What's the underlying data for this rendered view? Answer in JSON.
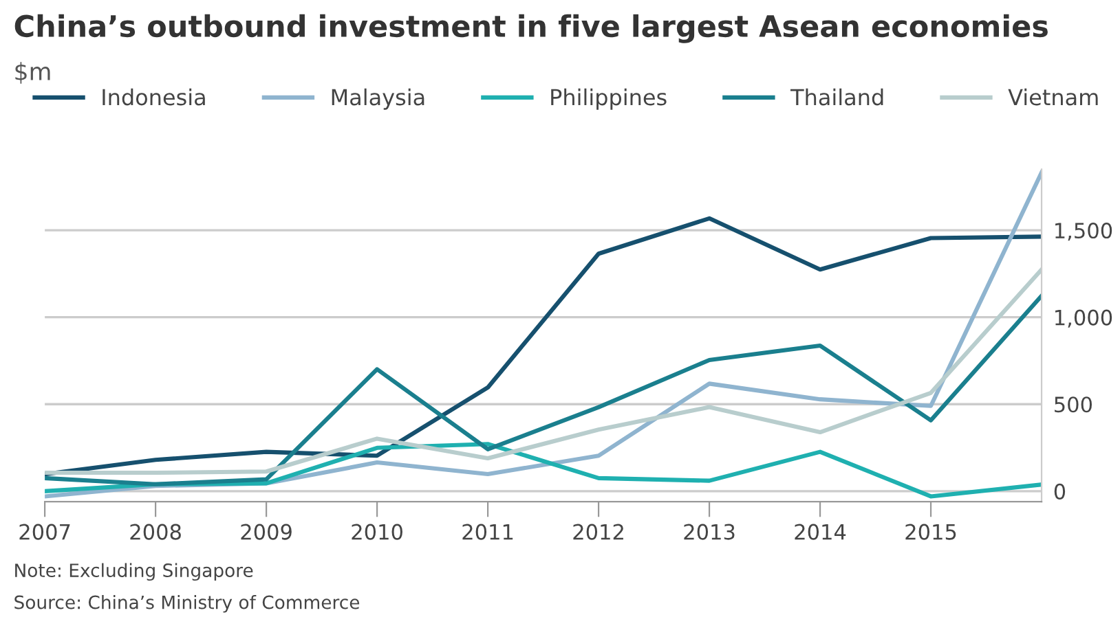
{
  "chart_data": {
    "type": "line",
    "title": "China’s outbound investment in five largest Asean economies",
    "subtitle": "$m",
    "x": [
      2007,
      2008,
      2009,
      2010,
      2011,
      2012,
      2013,
      2014,
      2015,
      2016
    ],
    "series": [
      {
        "name": "Indonesia",
        "color": "#16506e",
        "values": [
          98,
          180,
          226,
          204,
          596,
          1365,
          1568,
          1274,
          1455,
          1463
        ]
      },
      {
        "name": "Malaysia",
        "color": "#8fb4cf",
        "values": [
          -30,
          30,
          45,
          165,
          98,
          204,
          618,
          528,
          490,
          1832
        ]
      },
      {
        "name": "Philippines",
        "color": "#1fb0b0",
        "values": [
          0,
          40,
          45,
          249,
          271,
          75,
          60,
          226,
          -30,
          38
        ]
      },
      {
        "name": "Thailand",
        "color": "#1a7f8e",
        "values": [
          75,
          40,
          68,
          701,
          241,
          483,
          754,
          837,
          407,
          1123
        ]
      },
      {
        "name": "Vietnam",
        "color": "#b8cdcd",
        "values": [
          106,
          106,
          113,
          302,
          189,
          354,
          483,
          339,
          565,
          1274
        ]
      }
    ],
    "xlim": [
      2007,
      2016
    ],
    "xticks": [
      2007,
      2008,
      2009,
      2010,
      2011,
      2012,
      2013,
      2014,
      2015
    ],
    "ylim": [
      -60,
      1850
    ],
    "yticks": [
      0,
      {
        "value": 500,
        "label": "500"
      },
      {
        "value": 1000,
        "label": "1,000"
      },
      {
        "value": 1500,
        "label": "1,500"
      }
    ],
    "grid": "y",
    "legend": "top",
    "marker": "none",
    "line_style": "solid",
    "annotations": [
      "Note: Excluding Singapore",
      "Source: China’s Ministry of Commerce"
    ]
  }
}
